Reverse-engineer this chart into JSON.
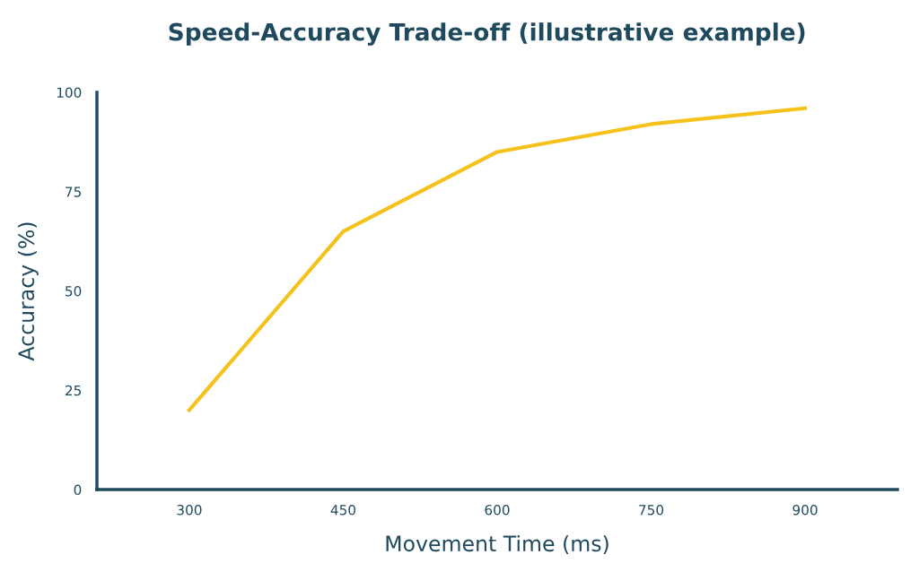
{
  "chart_data": {
    "type": "line",
    "title": "Speed-Accuracy Trade-off (illustrative example)",
    "xlabel": "Movement Time (ms)",
    "ylabel": "Accuracy (%)",
    "categories": [
      "300",
      "450",
      "600",
      "750",
      "900"
    ],
    "series": [
      {
        "color": "#f5c21b",
        "values": [
          20,
          65,
          85,
          92,
          96
        ]
      }
    ],
    "ylim": [
      0,
      100
    ],
    "yticks": [
      0,
      25,
      50,
      75,
      100
    ],
    "grid": false,
    "legend": false,
    "marker": "none",
    "line_style": "solid"
  }
}
